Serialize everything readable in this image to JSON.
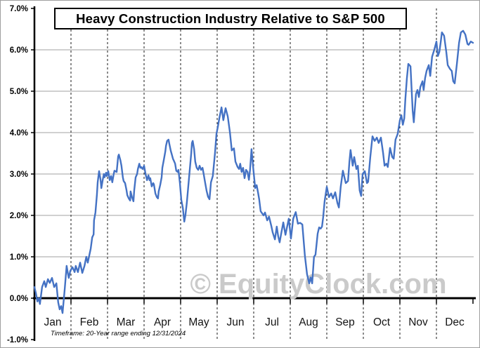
{
  "title": "Heavy Construction Industry Relative to S&P 500",
  "footer": "Timeframe: 20-Year range ending 12/31/2024",
  "watermark": "© EquityClock.com",
  "colors": {
    "line": "#4472C4",
    "solid_gridline": "#a0a0a0",
    "dashed_gridline": "#1a1a1a",
    "axis": "#000000",
    "watermark": "#cacaca",
    "month_label": "#141414",
    "y_label": "#000000"
  },
  "chart_data": {
    "type": "line",
    "title": "Heavy Construction Industry Relative to S&P 500",
    "xlabel": "",
    "ylabel": "",
    "x_unit": "month (0 = Jan 1, 12 = Dec 31)",
    "y_unit": "percent relative to S&P 500",
    "xlim": [
      0,
      12
    ],
    "ylim": [
      -1.0,
      7.0
    ],
    "x_tick_labels": [
      "Jan",
      "Feb",
      "Mar",
      "Apr",
      "May",
      "Jun",
      "Jul",
      "Aug",
      "Sep",
      "Oct",
      "Nov",
      "Dec"
    ],
    "y_tick_labels": [
      "7.0%",
      "6.0%",
      "5.0%",
      "4.0%",
      "3.0%",
      "2.0%",
      "1.0%",
      "0.0%",
      "-1.0%"
    ],
    "grid": {
      "horizontal": "solid gray lines at 1% to 6%",
      "vertical": "dashed black lines at month boundaries",
      "zero_axis": "thick black"
    },
    "legend": "none",
    "series": [
      {
        "name": "relative-performance-seasonal-average",
        "points": [
          [
            0.0,
            0.27
          ],
          [
            0.04,
            0.12
          ],
          [
            0.08,
            -0.08
          ],
          [
            0.12,
            0.0
          ],
          [
            0.15,
            -0.14
          ],
          [
            0.21,
            0.27
          ],
          [
            0.27,
            0.41
          ],
          [
            0.31,
            0.27
          ],
          [
            0.37,
            0.46
          ],
          [
            0.42,
            0.37
          ],
          [
            0.48,
            0.49
          ],
          [
            0.54,
            0.27
          ],
          [
            0.6,
            0.36
          ],
          [
            0.65,
            -0.1
          ],
          [
            0.69,
            -0.27
          ],
          [
            0.73,
            -0.19
          ],
          [
            0.77,
            -0.36
          ],
          [
            0.83,
            0.24
          ],
          [
            0.88,
            0.78
          ],
          [
            0.92,
            0.58
          ],
          [
            0.94,
            0.49
          ],
          [
            0.98,
            0.66
          ],
          [
            1.04,
            0.75
          ],
          [
            1.1,
            0.63
          ],
          [
            1.13,
            0.78
          ],
          [
            1.19,
            0.63
          ],
          [
            1.25,
            0.86
          ],
          [
            1.31,
            0.61
          ],
          [
            1.37,
            0.78
          ],
          [
            1.42,
            1.0
          ],
          [
            1.46,
            0.86
          ],
          [
            1.5,
            1.03
          ],
          [
            1.54,
            1.2
          ],
          [
            1.58,
            1.47
          ],
          [
            1.62,
            1.54
          ],
          [
            1.63,
            1.88
          ],
          [
            1.67,
            2.07
          ],
          [
            1.71,
            2.5
          ],
          [
            1.73,
            2.8
          ],
          [
            1.77,
            3.07
          ],
          [
            1.81,
            2.86
          ],
          [
            1.83,
            2.66
          ],
          [
            1.87,
            2.86
          ],
          [
            1.9,
            3.0
          ],
          [
            1.92,
            2.92
          ],
          [
            1.96,
            3.03
          ],
          [
            1.98,
            2.95
          ],
          [
            2.02,
            3.07
          ],
          [
            2.06,
            2.85
          ],
          [
            2.1,
            2.95
          ],
          [
            2.13,
            2.8
          ],
          [
            2.17,
            3.0
          ],
          [
            2.19,
            3.08
          ],
          [
            2.25,
            3.05
          ],
          [
            2.29,
            3.42
          ],
          [
            2.31,
            3.47
          ],
          [
            2.35,
            3.34
          ],
          [
            2.38,
            3.2
          ],
          [
            2.42,
            2.92
          ],
          [
            2.44,
            2.83
          ],
          [
            2.48,
            2.78
          ],
          [
            2.52,
            2.61
          ],
          [
            2.54,
            2.49
          ],
          [
            2.58,
            2.41
          ],
          [
            2.62,
            2.36
          ],
          [
            2.63,
            2.58
          ],
          [
            2.67,
            2.44
          ],
          [
            2.71,
            2.34
          ],
          [
            2.73,
            2.61
          ],
          [
            2.77,
            2.92
          ],
          [
            2.81,
            3.0
          ],
          [
            2.83,
            3.12
          ],
          [
            2.87,
            3.25
          ],
          [
            2.9,
            3.15
          ],
          [
            2.92,
            3.17
          ],
          [
            2.96,
            3.12
          ],
          [
            3.0,
            3.2
          ],
          [
            3.04,
            3.0
          ],
          [
            3.08,
            2.85
          ],
          [
            3.12,
            2.97
          ],
          [
            3.15,
            2.85
          ],
          [
            3.17,
            2.9
          ],
          [
            3.21,
            2.7
          ],
          [
            3.25,
            2.78
          ],
          [
            3.27,
            2.75
          ],
          [
            3.31,
            2.53
          ],
          [
            3.35,
            2.44
          ],
          [
            3.38,
            2.41
          ],
          [
            3.4,
            2.58
          ],
          [
            3.44,
            2.73
          ],
          [
            3.48,
            2.92
          ],
          [
            3.5,
            3.15
          ],
          [
            3.54,
            3.34
          ],
          [
            3.58,
            3.54
          ],
          [
            3.6,
            3.68
          ],
          [
            3.63,
            3.8
          ],
          [
            3.67,
            3.83
          ],
          [
            3.69,
            3.73
          ],
          [
            3.73,
            3.56
          ],
          [
            3.75,
            3.5
          ],
          [
            3.79,
            3.37
          ],
          [
            3.83,
            3.29
          ],
          [
            3.85,
            3.25
          ],
          [
            3.88,
            3.08
          ],
          [
            3.92,
            3.05
          ],
          [
            3.94,
            3.1
          ],
          [
            3.98,
            2.78
          ],
          [
            4.02,
            2.37
          ],
          [
            4.06,
            2.19
          ],
          [
            4.1,
            1.85
          ],
          [
            4.13,
            2.0
          ],
          [
            4.17,
            2.3
          ],
          [
            4.21,
            2.7
          ],
          [
            4.25,
            3.1
          ],
          [
            4.29,
            3.5
          ],
          [
            4.31,
            3.75
          ],
          [
            4.33,
            3.8
          ],
          [
            4.37,
            3.6
          ],
          [
            4.4,
            3.3
          ],
          [
            4.44,
            3.15
          ],
          [
            4.48,
            3.1
          ],
          [
            4.52,
            3.2
          ],
          [
            4.56,
            3.1
          ],
          [
            4.6,
            3.15
          ],
          [
            4.63,
            3.0
          ],
          [
            4.67,
            2.8
          ],
          [
            4.71,
            2.6
          ],
          [
            4.75,
            2.45
          ],
          [
            4.79,
            2.39
          ],
          [
            4.83,
            2.8
          ],
          [
            4.88,
            2.95
          ],
          [
            4.94,
            3.5
          ],
          [
            4.98,
            3.97
          ],
          [
            5.02,
            4.14
          ],
          [
            5.06,
            4.35
          ],
          [
            5.12,
            4.61
          ],
          [
            5.17,
            4.3
          ],
          [
            5.23,
            4.59
          ],
          [
            5.29,
            4.39
          ],
          [
            5.35,
            4.0
          ],
          [
            5.4,
            3.57
          ],
          [
            5.46,
            3.62
          ],
          [
            5.5,
            3.3
          ],
          [
            5.56,
            3.17
          ],
          [
            5.6,
            3.12
          ],
          [
            5.63,
            3.25
          ],
          [
            5.67,
            3.05
          ],
          [
            5.71,
            3.15
          ],
          [
            5.75,
            2.9
          ],
          [
            5.79,
            3.1
          ],
          [
            5.83,
            3.05
          ],
          [
            5.87,
            2.86
          ],
          [
            5.9,
            3.1
          ],
          [
            5.94,
            3.6
          ],
          [
            5.98,
            3.2
          ],
          [
            6.04,
            2.66
          ],
          [
            6.08,
            2.73
          ],
          [
            6.12,
            2.55
          ],
          [
            6.15,
            2.39
          ],
          [
            6.19,
            2.1
          ],
          [
            6.23,
            2.05
          ],
          [
            6.27,
            2.0
          ],
          [
            6.31,
            2.07
          ],
          [
            6.37,
            1.88
          ],
          [
            6.42,
            1.97
          ],
          [
            6.48,
            1.75
          ],
          [
            6.52,
            1.59
          ],
          [
            6.58,
            1.42
          ],
          [
            6.63,
            1.73
          ],
          [
            6.67,
            1.5
          ],
          [
            6.71,
            1.35
          ],
          [
            6.75,
            1.55
          ],
          [
            6.81,
            1.83
          ],
          [
            6.87,
            1.53
          ],
          [
            6.92,
            1.75
          ],
          [
            6.96,
            1.92
          ],
          [
            7.02,
            1.44
          ],
          [
            7.08,
            1.92
          ],
          [
            7.15,
            2.08
          ],
          [
            7.21,
            1.8
          ],
          [
            7.27,
            1.82
          ],
          [
            7.33,
            1.78
          ],
          [
            7.4,
            1.03
          ],
          [
            7.46,
            0.58
          ],
          [
            7.52,
            0.36
          ],
          [
            7.56,
            0.5
          ],
          [
            7.6,
            0.36
          ],
          [
            7.65,
            1.0
          ],
          [
            7.69,
            1.05
          ],
          [
            7.75,
            1.56
          ],
          [
            7.79,
            1.71
          ],
          [
            7.83,
            1.68
          ],
          [
            7.87,
            1.73
          ],
          [
            7.9,
            1.95
          ],
          [
            7.94,
            2.34
          ],
          [
            8.0,
            2.69
          ],
          [
            8.06,
            2.44
          ],
          [
            8.12,
            2.53
          ],
          [
            8.17,
            2.41
          ],
          [
            8.23,
            2.56
          ],
          [
            8.29,
            2.3
          ],
          [
            8.33,
            2.19
          ],
          [
            8.38,
            2.69
          ],
          [
            8.44,
            3.08
          ],
          [
            8.52,
            2.78
          ],
          [
            8.58,
            2.83
          ],
          [
            8.62,
            3.3
          ],
          [
            8.65,
            3.58
          ],
          [
            8.71,
            3.2
          ],
          [
            8.75,
            3.41
          ],
          [
            8.81,
            3.12
          ],
          [
            8.85,
            3.2
          ],
          [
            8.9,
            2.6
          ],
          [
            8.94,
            2.47
          ],
          [
            8.98,
            3.0
          ],
          [
            9.04,
            3.07
          ],
          [
            9.1,
            2.78
          ],
          [
            9.13,
            2.81
          ],
          [
            9.19,
            3.41
          ],
          [
            9.25,
            3.91
          ],
          [
            9.31,
            3.8
          ],
          [
            9.37,
            3.88
          ],
          [
            9.42,
            3.75
          ],
          [
            9.48,
            3.88
          ],
          [
            9.54,
            3.51
          ],
          [
            9.58,
            3.2
          ],
          [
            9.63,
            3.25
          ],
          [
            9.67,
            3.17
          ],
          [
            9.73,
            3.63
          ],
          [
            9.79,
            3.41
          ],
          [
            9.83,
            3.37
          ],
          [
            9.88,
            3.83
          ],
          [
            9.94,
            3.97
          ],
          [
            10.0,
            4.3
          ],
          [
            10.04,
            4.42
          ],
          [
            10.08,
            4.19
          ],
          [
            10.12,
            4.34
          ],
          [
            10.15,
            4.81
          ],
          [
            10.19,
            5.3
          ],
          [
            10.23,
            5.66
          ],
          [
            10.29,
            5.6
          ],
          [
            10.35,
            4.53
          ],
          [
            10.38,
            4.25
          ],
          [
            10.44,
            4.93
          ],
          [
            10.48,
            5.03
          ],
          [
            10.52,
            4.86
          ],
          [
            10.56,
            5.1
          ],
          [
            10.62,
            5.24
          ],
          [
            10.65,
            5.03
          ],
          [
            10.69,
            5.32
          ],
          [
            10.73,
            5.49
          ],
          [
            10.79,
            5.63
          ],
          [
            10.83,
            5.37
          ],
          [
            10.88,
            5.83
          ],
          [
            10.94,
            6.0
          ],
          [
            11.0,
            6.2
          ],
          [
            11.04,
            5.85
          ],
          [
            11.08,
            5.95
          ],
          [
            11.12,
            6.2
          ],
          [
            11.15,
            6.42
          ],
          [
            11.21,
            6.34
          ],
          [
            11.27,
            5.95
          ],
          [
            11.31,
            5.63
          ],
          [
            11.37,
            5.54
          ],
          [
            11.42,
            5.49
          ],
          [
            11.46,
            5.24
          ],
          [
            11.5,
            5.19
          ],
          [
            11.56,
            5.66
          ],
          [
            11.62,
            6.17
          ],
          [
            11.67,
            6.42
          ],
          [
            11.73,
            6.46
          ],
          [
            11.79,
            6.37
          ],
          [
            11.85,
            6.14
          ],
          [
            11.88,
            6.12
          ],
          [
            11.94,
            6.2
          ],
          [
            12.0,
            6.17
          ]
        ]
      }
    ]
  }
}
